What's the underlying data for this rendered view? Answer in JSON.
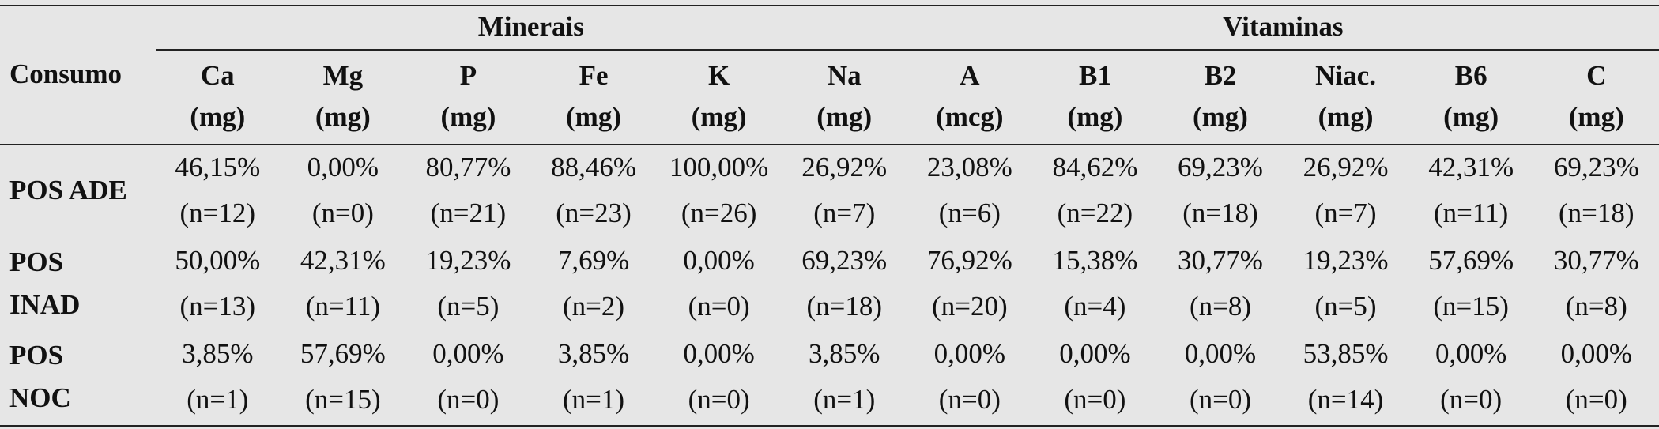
{
  "table": {
    "corner": "Consumo",
    "groups": {
      "minerals": "Minerais",
      "vitamins": "Vitaminas"
    },
    "columns": [
      {
        "name": "Ca",
        "unit": "(mg)"
      },
      {
        "name": "Mg",
        "unit": "(mg)"
      },
      {
        "name": "P",
        "unit": "(mg)"
      },
      {
        "name": "Fe",
        "unit": "(mg)"
      },
      {
        "name": "K",
        "unit": "(mg)"
      },
      {
        "name": "Na",
        "unit": "(mg)"
      },
      {
        "name": "A",
        "unit": "(mcg)"
      },
      {
        "name": "B1",
        "unit": "(mg)"
      },
      {
        "name": "B2",
        "unit": "(mg)"
      },
      {
        "name": "Niac.",
        "unit": "(mg)"
      },
      {
        "name": "B6",
        "unit": "(mg)"
      },
      {
        "name": "C",
        "unit": "(mg)"
      }
    ],
    "rows": [
      {
        "label_lines": [
          "POS ADE"
        ],
        "cells": [
          {
            "pct": "46,15%",
            "n": "(n=12)"
          },
          {
            "pct": "0,00%",
            "n": "(n=0)"
          },
          {
            "pct": "80,77%",
            "n": "(n=21)"
          },
          {
            "pct": "88,46%",
            "n": "(n=23)"
          },
          {
            "pct": "100,00%",
            "n": "(n=26)"
          },
          {
            "pct": "26,92%",
            "n": "(n=7)"
          },
          {
            "pct": "23,08%",
            "n": "(n=6)"
          },
          {
            "pct": "84,62%",
            "n": "(n=22)"
          },
          {
            "pct": "69,23%",
            "n": "(n=18)"
          },
          {
            "pct": "26,92%",
            "n": "(n=7)"
          },
          {
            "pct": "42,31%",
            "n": "(n=11)"
          },
          {
            "pct": "69,23%",
            "n": "(n=18)"
          }
        ]
      },
      {
        "label_lines": [
          "POS",
          "INAD"
        ],
        "cells": [
          {
            "pct": "50,00%",
            "n": "(n=13)"
          },
          {
            "pct": "42,31%",
            "n": "(n=11)"
          },
          {
            "pct": "19,23%",
            "n": "(n=5)"
          },
          {
            "pct": "7,69%",
            "n": "(n=2)"
          },
          {
            "pct": "0,00%",
            "n": "(n=0)"
          },
          {
            "pct": "69,23%",
            "n": "(n=18)"
          },
          {
            "pct": "76,92%",
            "n": "(n=20)"
          },
          {
            "pct": "15,38%",
            "n": "(n=4)"
          },
          {
            "pct": "30,77%",
            "n": "(n=8)"
          },
          {
            "pct": "19,23%",
            "n": "(n=5)"
          },
          {
            "pct": "57,69%",
            "n": "(n=15)"
          },
          {
            "pct": "30,77%",
            "n": "(n=8)"
          }
        ]
      },
      {
        "label_lines": [
          "POS",
          "NOC"
        ],
        "cells": [
          {
            "pct": "3,85%",
            "n": "(n=1)"
          },
          {
            "pct": "57,69%",
            "n": "(n=15)"
          },
          {
            "pct": "0,00%",
            "n": "(n=0)"
          },
          {
            "pct": "3,85%",
            "n": "(n=1)"
          },
          {
            "pct": "0,00%",
            "n": "(n=0)"
          },
          {
            "pct": "3,85%",
            "n": "(n=1)"
          },
          {
            "pct": "0,00%",
            "n": "(n=0)"
          },
          {
            "pct": "0,00%",
            "n": "(n=0)"
          },
          {
            "pct": "0,00%",
            "n": "(n=0)"
          },
          {
            "pct": "53,85%",
            "n": "(n=14)"
          },
          {
            "pct": "0,00%",
            "n": "(n=0)"
          },
          {
            "pct": "0,00%",
            "n": "(n=0)"
          }
        ]
      }
    ]
  }
}
